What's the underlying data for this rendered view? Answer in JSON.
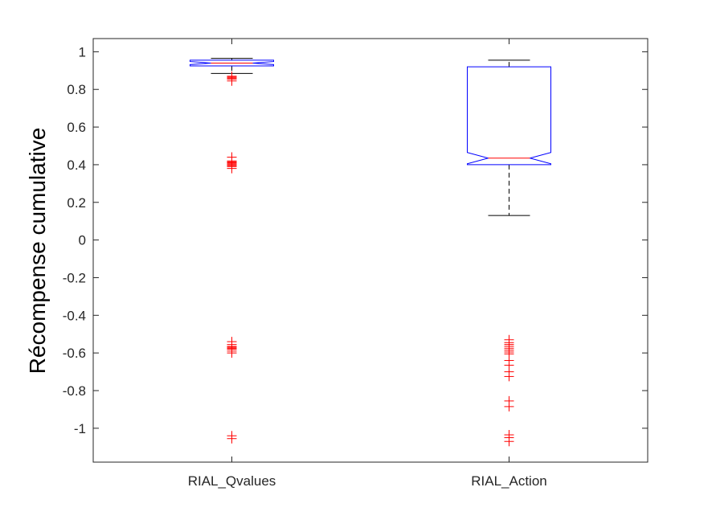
{
  "chart_data": {
    "type": "boxplot",
    "notched": true,
    "ylabel": "Récompense cumulative",
    "ylim": [
      -1.18,
      1.07
    ],
    "yticks": [
      1,
      0.8,
      0.6,
      0.4,
      0.2,
      0,
      -0.2,
      -0.4,
      -0.6,
      -0.8,
      -1
    ],
    "ytick_labels": [
      "1",
      "0.8",
      "0.6",
      "0.4",
      "0.2",
      "0",
      "-0.2",
      "-0.4",
      "-0.6",
      "-0.8",
      "-1"
    ],
    "categories": [
      "RIAL_Qvalues",
      "RIAL_Action"
    ],
    "boxes": [
      {
        "category": "RIAL_Qvalues",
        "whisker_low": 0.885,
        "q1": 0.925,
        "median": 0.94,
        "q3": 0.955,
        "whisker_high": 0.965,
        "notch_low": 0.932,
        "notch_high": 0.948,
        "outliers": [
          0.87,
          0.865,
          0.86,
          0.855,
          0.845,
          0.44,
          0.42,
          0.415,
          0.41,
          0.405,
          0.4,
          0.395,
          0.39,
          0.38,
          -0.54,
          -0.555,
          -0.565,
          -0.57,
          -0.575,
          -0.58,
          -0.59,
          -0.6,
          -1.04,
          -1.055
        ]
      },
      {
        "category": "RIAL_Action",
        "whisker_low": 0.13,
        "q1": 0.4,
        "median": 0.435,
        "q3": 0.92,
        "whisker_high": 0.955,
        "notch_low": 0.405,
        "notch_high": 0.465,
        "outliers": [
          -0.53,
          -0.545,
          -0.555,
          -0.565,
          -0.575,
          -0.585,
          -0.595,
          -0.605,
          -0.64,
          -0.665,
          -0.7,
          -0.725,
          -0.855,
          -0.885,
          -1.035,
          -1.05,
          -1.07
        ]
      }
    ],
    "colors": {
      "box": "#0000ff",
      "median": "#ff0000",
      "whisker": "#000000",
      "outlier": "#ff0000",
      "axes": "#262626"
    },
    "grid": false,
    "legend": "none"
  }
}
